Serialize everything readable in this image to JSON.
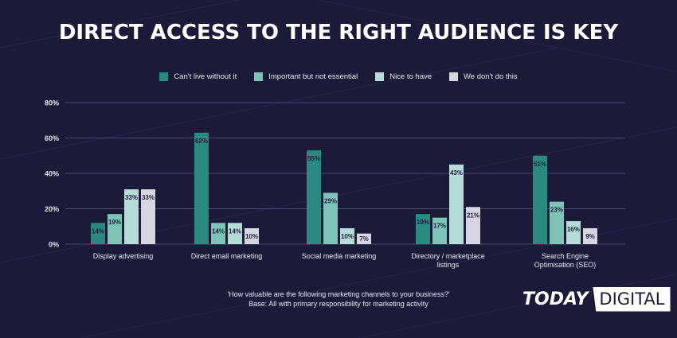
{
  "title": "DIRECT ACCESS TO THE RIGHT AUDIENCE IS KEY",
  "legend": [
    {
      "label": "Can't live without it",
      "color": "#2a8a7f"
    },
    {
      "label": "Important but not essential",
      "color": "#7ec4b6"
    },
    {
      "label": "Nice to have",
      "color": "#b6dcd8"
    },
    {
      "label": "We don't do this",
      "color": "#d6d6e2"
    }
  ],
  "chart_data": {
    "type": "bar",
    "categories": [
      [
        "Display advertising"
      ],
      [
        "Direct email marketing"
      ],
      [
        "Social media marketing"
      ],
      [
        "Directory / marketplace",
        "listings"
      ],
      [
        "Search Engine",
        "Optimisation (SEO)"
      ]
    ],
    "series": [
      {
        "name": "Can't live without it",
        "values": [
          14,
          62,
          55,
          19,
          51
        ]
      },
      {
        "name": "Important but not essential",
        "values": [
          19,
          14,
          29,
          17,
          23
        ]
      },
      {
        "name": "Nice to have",
        "values": [
          33,
          14,
          10,
          43,
          16
        ]
      },
      {
        "name": "We don't do this",
        "values": [
          33,
          10,
          7,
          21,
          9
        ]
      }
    ],
    "bar_heights": [
      [
        12,
        63,
        53,
        17,
        50
      ],
      [
        17,
        12,
        29,
        15,
        24
      ],
      [
        31,
        12,
        9,
        45,
        13
      ],
      [
        31,
        9,
        6,
        21,
        9
      ]
    ],
    "yticks": [
      "0%",
      "20%",
      "40%",
      "60%",
      "80%"
    ],
    "ylim": [
      0,
      80
    ],
    "grid": true,
    "legend_position": "top-center"
  },
  "footer": {
    "question": "'How valuable are the following marketing channels to your business?'",
    "base": "Base: All with primary responsibility for marketing activity"
  },
  "logo": {
    "today": "TODAY",
    "digital": "DIGITAL"
  }
}
